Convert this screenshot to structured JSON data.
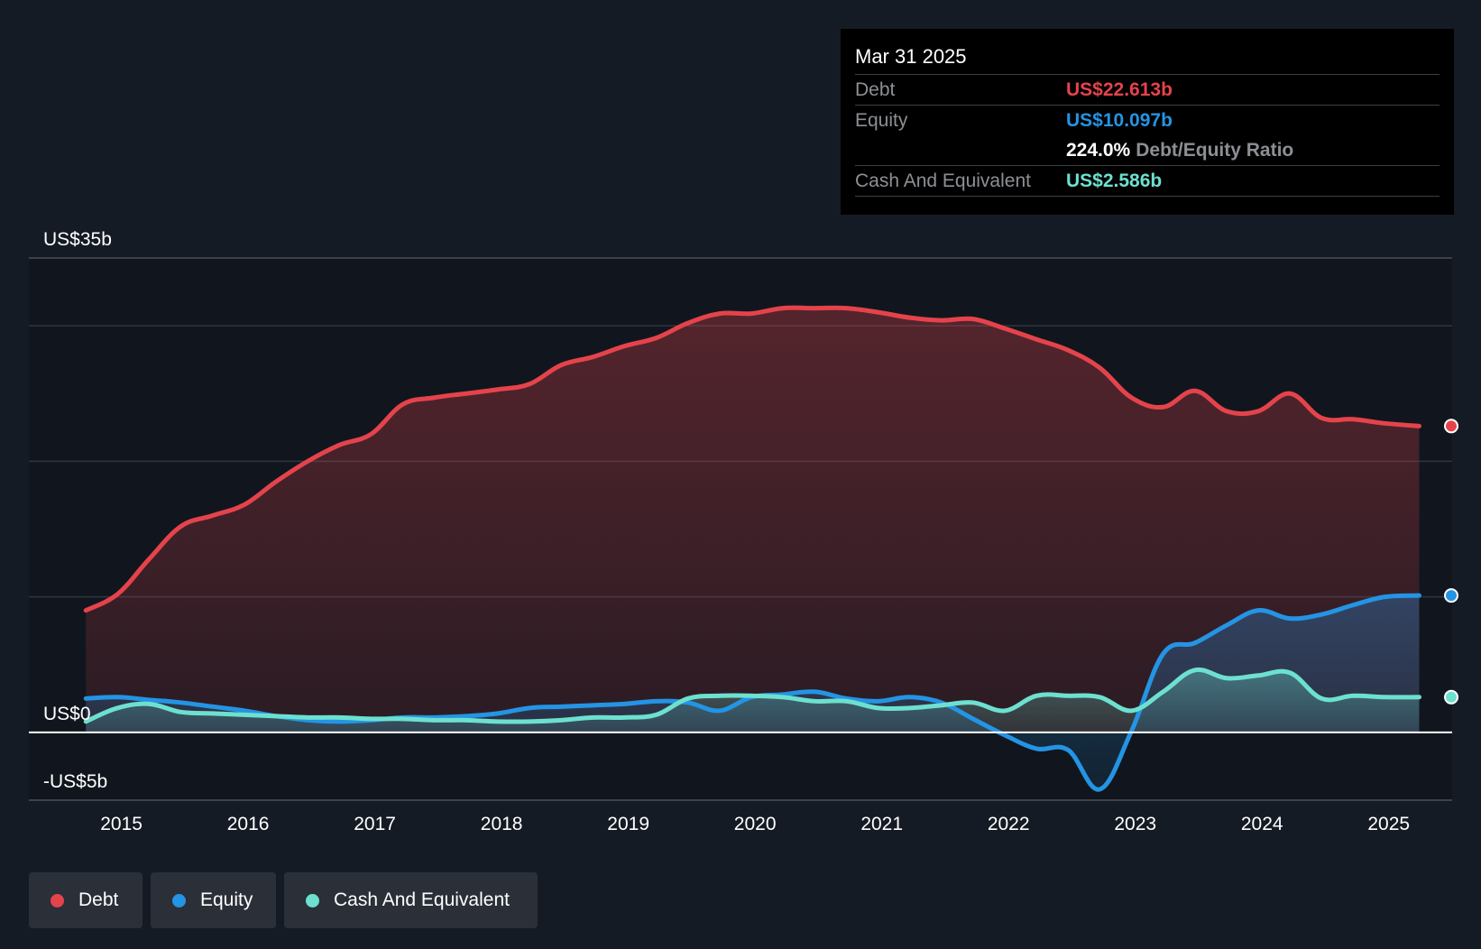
{
  "tooltip": {
    "date": "Mar 31 2025",
    "debt_label": "Debt",
    "debt_value": "US$22.613b",
    "equity_label": "Equity",
    "equity_value": "US$10.097b",
    "ratio_value": "224.0%",
    "ratio_label": "Debt/Equity Ratio",
    "cash_label": "Cash And Equivalent",
    "cash_value": "US$2.586b"
  },
  "legend": {
    "debt": "Debt",
    "equity": "Equity",
    "cash": "Cash And Equivalent"
  },
  "colors": {
    "debt": "#e5434b",
    "equity": "#2494e4",
    "cash": "#6de0cf",
    "background": "#151b24"
  },
  "chart_data": {
    "type": "area",
    "title": "",
    "xlabel": "",
    "ylabel": "",
    "ylim": [
      -5,
      35
    ],
    "y_tick_labels": [
      {
        "value": 35,
        "label": "US$35b"
      },
      {
        "value": 0,
        "label": "US$0"
      },
      {
        "value": -5,
        "label": "-US$5b"
      }
    ],
    "gridlines": [
      30,
      20,
      10
    ],
    "x_ticks": [
      2015,
      2016,
      2017,
      2018,
      2019,
      2020,
      2021,
      2022,
      2023,
      2024,
      2025
    ],
    "x_tick_labels": [
      "2015",
      "2016",
      "2017",
      "2018",
      "2019",
      "2020",
      "2021",
      "2022",
      "2023",
      "2024",
      "2025"
    ],
    "x_range": [
      2014.27,
      2025.5
    ],
    "series": [
      {
        "name": "Debt",
        "x": [
          2014.72,
          2014.97,
          2015.22,
          2015.47,
          2015.72,
          2015.97,
          2016.22,
          2016.47,
          2016.72,
          2016.97,
          2017.22,
          2017.47,
          2017.72,
          2017.97,
          2018.22,
          2018.47,
          2018.72,
          2018.97,
          2019.22,
          2019.47,
          2019.72,
          2019.97,
          2020.22,
          2020.47,
          2020.72,
          2020.97,
          2021.22,
          2021.47,
          2021.72,
          2021.97,
          2022.22,
          2022.47,
          2022.72,
          2022.97,
          2023.22,
          2023.47,
          2023.72,
          2023.97,
          2024.22,
          2024.47,
          2024.72,
          2024.97,
          2025.24
        ],
        "values": [
          9.0,
          10.2,
          12.8,
          15.2,
          16.0,
          16.8,
          18.5,
          20.0,
          21.2,
          22.0,
          24.2,
          24.7,
          25.0,
          25.3,
          25.7,
          27.1,
          27.7,
          28.5,
          29.1,
          30.2,
          30.9,
          30.9,
          31.3,
          31.3,
          31.3,
          31.0,
          30.6,
          30.4,
          30.5,
          29.8,
          29.0,
          28.2,
          26.9,
          24.7,
          24.0,
          25.2,
          23.7,
          23.7,
          25.0,
          23.2,
          23.1,
          22.8,
          22.6
        ]
      },
      {
        "name": "Equity",
        "x": [
          2014.72,
          2014.97,
          2015.22,
          2015.47,
          2015.72,
          2015.97,
          2016.22,
          2016.47,
          2016.72,
          2016.97,
          2017.22,
          2017.47,
          2017.72,
          2017.97,
          2018.22,
          2018.47,
          2018.72,
          2018.97,
          2019.22,
          2019.47,
          2019.72,
          2019.97,
          2020.22,
          2020.47,
          2020.72,
          2020.97,
          2021.22,
          2021.47,
          2021.72,
          2021.97,
          2022.22,
          2022.47,
          2022.72,
          2022.97,
          2023.22,
          2023.47,
          2023.72,
          2023.97,
          2024.22,
          2024.47,
          2024.72,
          2024.97,
          2025.24
        ],
        "values": [
          2.5,
          2.6,
          2.4,
          2.2,
          1.9,
          1.6,
          1.2,
          0.9,
          0.8,
          0.9,
          1.1,
          1.1,
          1.2,
          1.4,
          1.8,
          1.9,
          2.0,
          2.1,
          2.3,
          2.2,
          1.6,
          2.6,
          2.8,
          3.0,
          2.5,
          2.3,
          2.6,
          2.2,
          1.0,
          -0.2,
          -1.2,
          -1.3,
          -4.2,
          0.1,
          5.8,
          6.6,
          7.9,
          9.0,
          8.4,
          8.7,
          9.4,
          10.0,
          10.1
        ]
      },
      {
        "name": "Cash And Equivalent",
        "x": [
          2014.72,
          2014.97,
          2015.22,
          2015.47,
          2015.72,
          2015.97,
          2016.22,
          2016.47,
          2016.72,
          2016.97,
          2017.22,
          2017.47,
          2017.72,
          2017.97,
          2018.22,
          2018.47,
          2018.72,
          2018.97,
          2019.22,
          2019.47,
          2019.72,
          2019.97,
          2020.22,
          2020.47,
          2020.72,
          2020.97,
          2021.22,
          2021.47,
          2021.72,
          2021.97,
          2022.22,
          2022.47,
          2022.72,
          2022.97,
          2023.22,
          2023.47,
          2023.72,
          2023.97,
          2024.22,
          2024.47,
          2024.72,
          2024.97,
          2025.24
        ],
        "values": [
          0.8,
          1.8,
          2.1,
          1.5,
          1.4,
          1.3,
          1.2,
          1.1,
          1.1,
          1.0,
          1.0,
          0.9,
          0.9,
          0.8,
          0.8,
          0.9,
          1.1,
          1.1,
          1.3,
          2.5,
          2.7,
          2.7,
          2.6,
          2.3,
          2.3,
          1.8,
          1.8,
          2.0,
          2.2,
          1.6,
          2.7,
          2.7,
          2.6,
          1.6,
          3.0,
          4.6,
          4.0,
          4.2,
          4.4,
          2.5,
          2.7,
          2.6,
          2.6
        ]
      }
    ]
  }
}
